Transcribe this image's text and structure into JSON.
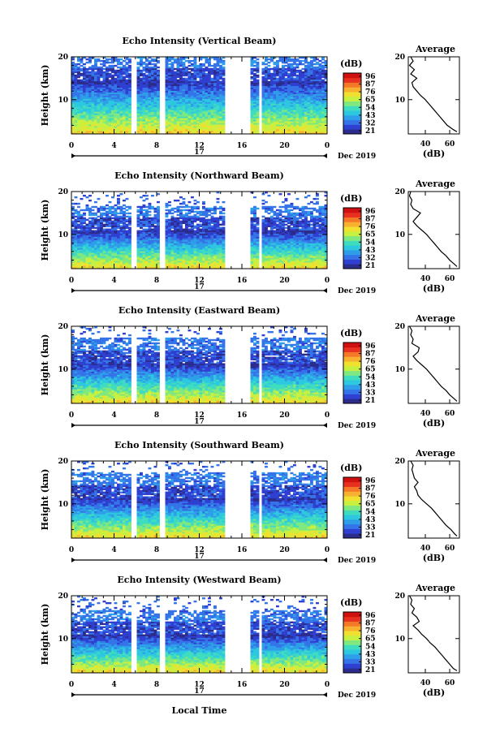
{
  "chart_data": {
    "type": "heatmap",
    "colorbar": {
      "unit": "(dB)",
      "ticks": [
        "96",
        "87",
        "76",
        "65",
        "54",
        "43",
        "32",
        "21"
      ]
    },
    "colorscale": [
      "#2b2c8c",
      "#2f3fd0",
      "#3474e8",
      "#2f9ee8",
      "#2dc7e0",
      "#3fdcc0",
      "#7fe87f",
      "#c8f040",
      "#f0e030",
      "#f8b030",
      "#f47828",
      "#e83020",
      "#d01010"
    ],
    "x_axis": {
      "xlim": [
        0,
        24
      ],
      "ticks": [
        "0",
        "4",
        "8",
        "12",
        "16",
        "20",
        "0"
      ],
      "day_label": "17",
      "date_label": "Dec 2019",
      "label": "Local Time"
    },
    "y_axis": {
      "label": "Height (km)",
      "ylim": [
        2,
        20
      ],
      "ticks": [
        "20",
        "10"
      ]
    },
    "profile_axis": {
      "title": "Average",
      "xlabel": "(dB)",
      "xticks": [
        "40",
        "60"
      ],
      "xlim": [
        26,
        68
      ],
      "yticks": [
        "20",
        "10"
      ]
    },
    "data_gaps_hours": [
      [
        5.7,
        6.0
      ],
      [
        8.3,
        8.9
      ],
      [
        14.3,
        16.9
      ],
      [
        17.6,
        17.9
      ]
    ],
    "panels": [
      {
        "title": "Echo Intensity (Vertical Beam)",
        "ticks_override": null,
        "echo_top_km": 19,
        "profile": {
          "height_km": [
            2.5,
            3,
            4,
            5,
            6,
            7,
            8,
            9,
            10,
            11,
            12,
            13,
            14,
            15,
            16,
            17,
            18,
            19,
            20
          ],
          "db": [
            66,
            63,
            58,
            55,
            52,
            49,
            46,
            43,
            40,
            36,
            33,
            30,
            29,
            33,
            28,
            31,
            27,
            30,
            28
          ]
        }
      },
      {
        "title": "Echo Intensity (Northward Beam)",
        "ticks_override": null,
        "echo_top_km": 15.5,
        "profile": {
          "height_km": [
            2.5,
            3,
            4,
            5,
            6,
            7,
            8,
            9,
            10,
            11,
            12,
            13,
            14,
            15,
            16,
            17,
            18,
            19,
            20
          ],
          "db": [
            66,
            64,
            60,
            57,
            53,
            50,
            47,
            44,
            41,
            37,
            33,
            30,
            33,
            36,
            30,
            28,
            29,
            27,
            28
          ]
        }
      },
      {
        "title": "Echo Intensity (Eastward Beam)",
        "ticks_override": [
          "96",
          "87",
          "76",
          "65",
          "54",
          "43",
          "33",
          "21"
        ],
        "echo_top_km": 16,
        "profile": {
          "height_km": [
            2.5,
            3,
            4,
            5,
            6,
            7,
            8,
            9,
            10,
            11,
            12,
            13,
            14,
            15,
            16,
            17,
            18,
            19,
            20
          ],
          "db": [
            66,
            64,
            60,
            57,
            53,
            50,
            47,
            44,
            41,
            37,
            33,
            30,
            34,
            35,
            29,
            30,
            28,
            29,
            27
          ]
        }
      },
      {
        "title": "Echo Intensity (Southward Beam)",
        "ticks_override": [
          "96",
          "87",
          "76",
          "65",
          "54",
          "43",
          "33",
          "21"
        ],
        "echo_top_km": 16,
        "profile": {
          "height_km": [
            2.5,
            3,
            4,
            5,
            6,
            7,
            8,
            9,
            10,
            11,
            12,
            13,
            14,
            15,
            16,
            17,
            18,
            19,
            20
          ],
          "db": [
            66,
            64,
            61,
            57,
            54,
            51,
            48,
            45,
            41,
            37,
            34,
            33,
            31,
            34,
            31,
            30,
            29,
            30,
            28
          ]
        }
      },
      {
        "title": "Echo Intensity (Westward Beam)",
        "ticks_override": [
          "96",
          "87",
          "76",
          "65",
          "54",
          "43",
          "33",
          "21"
        ],
        "echo_top_km": 15.5,
        "profile": {
          "height_km": [
            2.5,
            3,
            4,
            5,
            6,
            7,
            8,
            9,
            10,
            11,
            12,
            13,
            14,
            15,
            16,
            17,
            18,
            19,
            20
          ],
          "db": [
            66,
            63,
            60,
            57,
            54,
            51,
            48,
            44,
            41,
            37,
            34,
            30,
            35,
            33,
            29,
            31,
            28,
            29,
            27
          ]
        }
      }
    ]
  }
}
